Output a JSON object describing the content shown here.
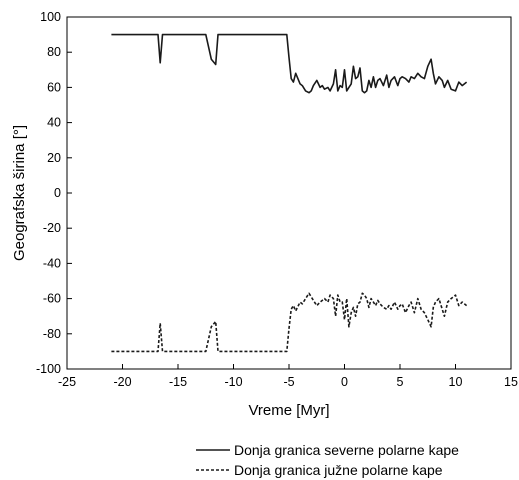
{
  "chart_data": {
    "type": "line",
    "title": "",
    "xlabel": "Vreme [Myr]",
    "ylabel": "Geografska širina [°]",
    "xlim": [
      -25,
      15
    ],
    "ylim": [
      -100,
      100
    ],
    "xticks": [
      -25,
      -20,
      -15,
      -10,
      -5,
      0,
      5,
      10,
      15
    ],
    "yticks": [
      -100,
      -80,
      -60,
      -40,
      -20,
      0,
      20,
      40,
      60,
      80,
      100
    ],
    "grid": false,
    "legend_position": "bottom-right, below plot",
    "series": [
      {
        "name": "Donja granica severne polarne kape",
        "style": "solid",
        "color": "#1a1a1a",
        "x": [
          -21,
          -16.8,
          -16.6,
          -16.4,
          -16.2,
          -12.5,
          -12,
          -11.6,
          -11.4,
          -11.2,
          -5.2,
          -5,
          -4.8,
          -4.6,
          -4.4,
          -4,
          -3.8,
          -3.5,
          -3.2,
          -3,
          -2.8,
          -2.5,
          -2.2,
          -2,
          -1.8,
          -1.5,
          -1.3,
          -1,
          -0.8,
          -0.6,
          -0.4,
          -0.2,
          0,
          0.2,
          0.4,
          0.6,
          0.8,
          1,
          1.2,
          1.4,
          1.6,
          1.8,
          2,
          2.2,
          2.4,
          2.6,
          2.8,
          3,
          3.2,
          3.5,
          3.8,
          4,
          4.2,
          4.5,
          4.8,
          5,
          5.2,
          5.5,
          5.8,
          6,
          6.3,
          6.6,
          6.9,
          7.2,
          7.5,
          7.8,
          8,
          8.2,
          8.5,
          8.8,
          9,
          9.3,
          9.6,
          10,
          10.3,
          10.6,
          11
        ],
        "y": [
          90,
          90,
          74,
          90,
          90,
          90,
          76,
          73,
          90,
          90,
          90,
          77,
          65,
          63,
          68,
          62,
          61,
          58,
          57,
          58,
          61,
          64,
          60,
          61,
          59,
          60,
          58,
          62,
          70,
          58,
          61,
          60,
          70,
          58,
          60,
          62,
          72,
          65,
          66,
          71,
          58,
          57,
          58,
          64,
          60,
          66,
          60,
          64,
          65,
          61,
          67,
          60,
          64,
          66,
          61,
          65,
          66,
          65,
          63,
          66,
          65,
          68,
          66,
          65,
          72,
          76,
          68,
          62,
          66,
          64,
          60,
          64,
          59,
          58,
          63,
          61,
          63
        ]
      },
      {
        "name": "Donja granica južne polarne kape",
        "style": "dashed",
        "color": "#1a1a1a",
        "x": [
          -21,
          -16.8,
          -16.6,
          -16.4,
          -16.2,
          -12.5,
          -12,
          -11.6,
          -11.4,
          -11.2,
          -5.2,
          -5,
          -4.8,
          -4.6,
          -4.4,
          -4,
          -3.8,
          -3.5,
          -3.2,
          -3,
          -2.8,
          -2.5,
          -2.2,
          -2,
          -1.8,
          -1.5,
          -1.3,
          -1,
          -0.8,
          -0.6,
          -0.4,
          -0.2,
          0,
          0.2,
          0.4,
          0.6,
          0.8,
          1,
          1.2,
          1.4,
          1.6,
          1.8,
          2,
          2.2,
          2.4,
          2.6,
          2.8,
          3,
          3.2,
          3.5,
          3.8,
          4,
          4.2,
          4.5,
          4.8,
          5,
          5.2,
          5.5,
          5.8,
          6,
          6.3,
          6.6,
          6.9,
          7.2,
          7.5,
          7.8,
          8,
          8.2,
          8.5,
          8.8,
          9,
          9.3,
          9.6,
          10,
          10.3,
          10.6,
          11
        ],
        "y": [
          -90,
          -90,
          -74,
          -90,
          -90,
          -90,
          -76,
          -73,
          -90,
          -90,
          -90,
          -77,
          -66,
          -64,
          -67,
          -62,
          -63,
          -60,
          -57,
          -59,
          -61,
          -64,
          -62,
          -61,
          -60,
          -62,
          -58,
          -60,
          -70,
          -58,
          -62,
          -62,
          -72,
          -60,
          -76,
          -68,
          -65,
          -70,
          -63,
          -62,
          -57,
          -58,
          -60,
          -65,
          -60,
          -62,
          -64,
          -61,
          -63,
          -65,
          -66,
          -64,
          -66,
          -62,
          -66,
          -64,
          -63,
          -68,
          -64,
          -62,
          -68,
          -60,
          -66,
          -68,
          -72,
          -76,
          -65,
          -62,
          -60,
          -66,
          -70,
          -62,
          -60,
          -58,
          -64,
          -62,
          -64
        ]
      }
    ]
  }
}
